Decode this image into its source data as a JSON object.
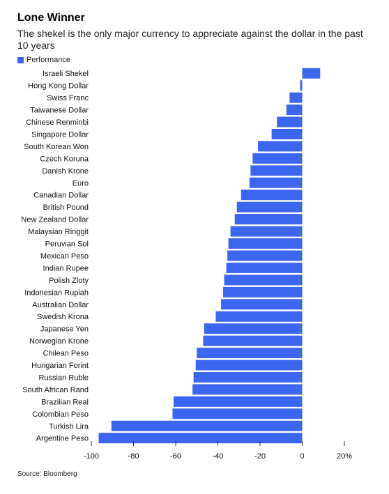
{
  "title": "Lone Winner",
  "subtitle": "The shekel is the only major currency to appreciate against the dollar in the past 10 years",
  "source": "Source: Bloomberg",
  "chart_data": {
    "type": "bar",
    "orientation": "horizontal",
    "categories": [
      "Israeli Shekel",
      "Hong Kong Dollar",
      "Swiss Franc",
      "Taiwanese Dollar",
      "Chinese Renminbi",
      "Singapore Dollar",
      "South Korean Won",
      "Czech Koruna",
      "Danish Krone",
      "Euro",
      "Canadian Dollar",
      "British Pound",
      "New Zealand Dollar",
      "Malaysian Ringgit",
      "Peruvian Sol",
      "Mexican Peso",
      "Indian Rupee",
      "Polish Zloty",
      "Indonesian Rupiah",
      "Australian Dollar",
      "Swedish Krona",
      "Japanese Yen",
      "Norwegian Krone",
      "Chilean Peso",
      "Hungarian Forint",
      "Russian Ruble",
      "South African Rand",
      "Brazilian Real",
      "Colombian Peso",
      "Turkish Lira",
      "Argentine Peso"
    ],
    "series": [
      {
        "name": "Performance",
        "values": [
          8.5,
          -1,
          -6,
          -7.5,
          -12,
          -14.5,
          -21,
          -23.5,
          -24.5,
          -25,
          -29,
          -31,
          -32,
          -34,
          -35,
          -35.5,
          -36,
          -37,
          -37.5,
          -38.5,
          -41,
          -46.5,
          -47,
          -50,
          -50.5,
          -51.5,
          -52,
          -61,
          -61.5,
          -90.5,
          -96.5
        ]
      }
    ],
    "xlim": [
      -100,
      20
    ],
    "xticks": [
      -100,
      -80,
      -60,
      -40,
      -20,
      0,
      20
    ],
    "xtick_labels": [
      "-100",
      "-80",
      "-60",
      "-40",
      "-20",
      "0",
      "20%"
    ],
    "legend": "top-left",
    "grid": false,
    "bar_color": "#3d66f0"
  }
}
